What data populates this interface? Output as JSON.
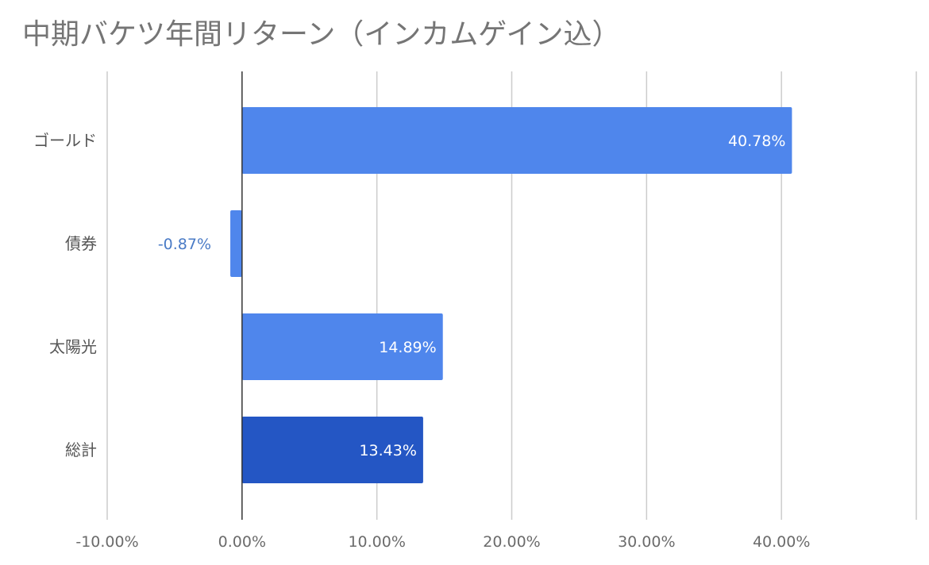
{
  "chart_data": {
    "type": "bar",
    "orientation": "horizontal",
    "title": "中期バケツ年間リターン（インカムゲイン込）",
    "xlabel": "",
    "ylabel": "",
    "categories": [
      "ゴールド",
      "債券",
      "太陽光",
      "総計"
    ],
    "values": [
      40.78,
      -0.87,
      14.89,
      13.43
    ],
    "value_labels": [
      "40.78%",
      "-0.87%",
      "14.89%",
      "13.43%"
    ],
    "bar_colors": [
      "#4f86ec",
      "#4f86ec",
      "#4f86ec",
      "#2456c4"
    ],
    "xlim": [
      -10,
      50
    ],
    "x_ticks": [
      -10,
      0,
      10,
      20,
      30,
      40
    ],
    "x_tick_labels": [
      "-10.00%",
      "0.00%",
      "10.00%",
      "20.00%",
      "30.00%",
      "40.00%"
    ],
    "grid": true,
    "legend": "none"
  },
  "colors": {
    "title": "#757575",
    "grid": "#cccccc",
    "zero_line": "#333333",
    "label_inside": "#ffffff",
    "label_outside": "#4a7bc6"
  }
}
